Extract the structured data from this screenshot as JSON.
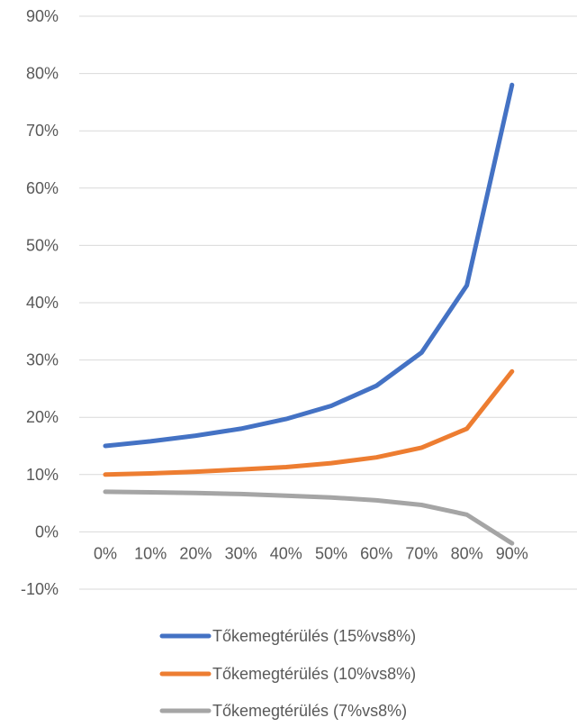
{
  "chart_data": {
    "type": "line",
    "title": "",
    "xlabel": "",
    "ylabel": "",
    "categories": [
      "0%",
      "10%",
      "20%",
      "30%",
      "40%",
      "50%",
      "60%",
      "70%",
      "80%",
      "90%"
    ],
    "y_ticks": [
      "-10%",
      "0%",
      "10%",
      "20%",
      "30%",
      "40%",
      "50%",
      "60%",
      "70%",
      "80%",
      "90%"
    ],
    "ylim": [
      -10,
      90
    ],
    "grid": true,
    "legend_position": "bottom",
    "series": [
      {
        "name": "Tőkemegtérülés (15%vs8%)",
        "color": "#4472C4",
        "values": [
          15,
          15.8,
          16.8,
          18,
          19.7,
          22,
          25.5,
          31.3,
          43,
          78
        ]
      },
      {
        "name": "Tőkemegtérülés (10%vs8%)",
        "color": "#ED7D31",
        "values": [
          10,
          10.2,
          10.5,
          10.9,
          11.3,
          12,
          13,
          14.7,
          18,
          28
        ]
      },
      {
        "name": "Tőkemegtérülés (7%vs8%)",
        "color": "#A5A5A5",
        "values": [
          7,
          6.9,
          6.8,
          6.6,
          6.3,
          6,
          5.5,
          4.7,
          3,
          -2
        ]
      }
    ]
  }
}
